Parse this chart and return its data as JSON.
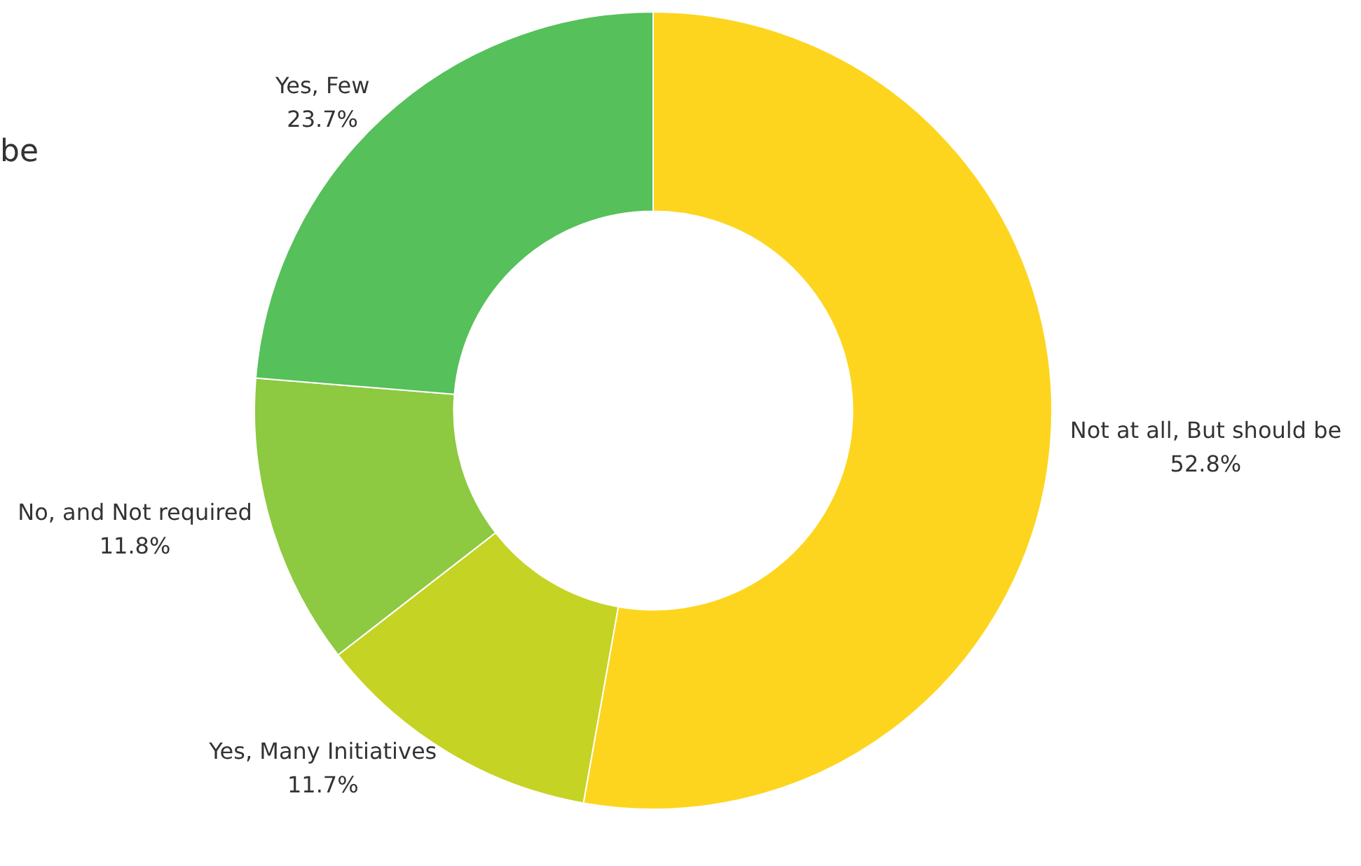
{
  "chart_data": {
    "type": "donut",
    "categories": [
      "Not at all, But should be",
      "Yes, Many Initiatives",
      "No, and Not required",
      "Yes, Few"
    ],
    "values": [
      52.8,
      11.7,
      11.8,
      23.7
    ],
    "value_labels": [
      "52.8%",
      "11.7%",
      "11.8%",
      "23.7%"
    ],
    "colors": [
      "#fdd51f",
      "#c5d324",
      "#8dc941",
      "#56c05a"
    ],
    "annotations": [
      "be"
    ],
    "legend": false
  }
}
